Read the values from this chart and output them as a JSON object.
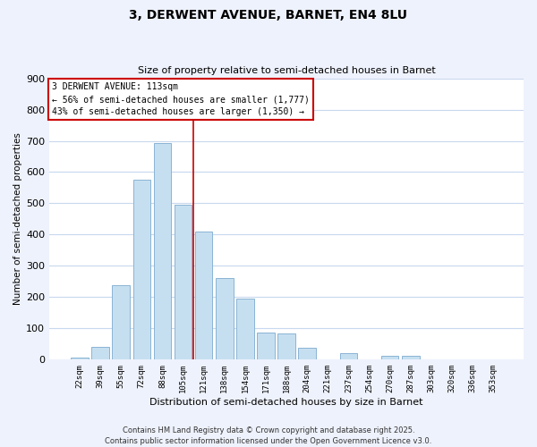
{
  "title": "3, DERWENT AVENUE, BARNET, EN4 8LU",
  "subtitle": "Size of property relative to semi-detached houses in Barnet",
  "xlabel": "Distribution of semi-detached houses by size in Barnet",
  "ylabel": "Number of semi-detached properties",
  "bar_labels": [
    "22sqm",
    "39sqm",
    "55sqm",
    "72sqm",
    "88sqm",
    "105sqm",
    "121sqm",
    "138sqm",
    "154sqm",
    "171sqm",
    "188sqm",
    "204sqm",
    "221sqm",
    "237sqm",
    "254sqm",
    "270sqm",
    "287sqm",
    "303sqm",
    "320sqm",
    "336sqm",
    "353sqm"
  ],
  "bar_values": [
    7,
    40,
    238,
    575,
    693,
    495,
    410,
    260,
    195,
    88,
    83,
    37,
    0,
    20,
    0,
    13,
    13,
    0,
    0,
    0,
    0
  ],
  "bar_color": "#c6dff0",
  "bar_edgecolor": "#8ab4d4",
  "vline_x": 5.5,
  "vline_color": "#cc0000",
  "legend_title": "3 DERWENT AVENUE: 113sqm",
  "legend_line1": "← 56% of semi-detached houses are smaller (1,777)",
  "legend_line2": "43% of semi-detached houses are larger (1,350) →",
  "ylim": [
    0,
    900
  ],
  "yticks": [
    0,
    100,
    200,
    300,
    400,
    500,
    600,
    700,
    800,
    900
  ],
  "footer_line1": "Contains HM Land Registry data © Crown copyright and database right 2025.",
  "footer_line2": "Contains public sector information licensed under the Open Government Licence v3.0.",
  "bg_color": "#eef2fc",
  "plot_bg_color": "#ffffff",
  "grid_color": "#c8d8ee"
}
